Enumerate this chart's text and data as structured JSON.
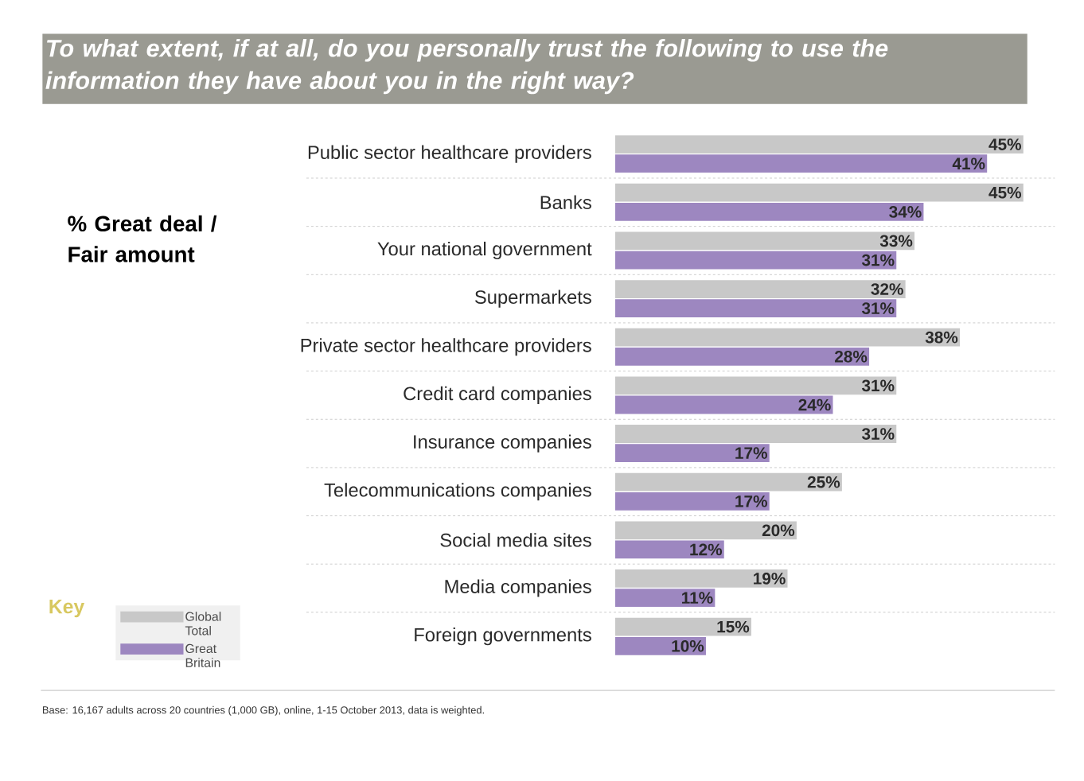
{
  "chart_data": {
    "type": "bar",
    "orientation": "horizontal",
    "title": "To what extent, if at all, do you personally trust the following to use the information they have about you in the right way?",
    "subtitle": "% Great deal / Fair amount",
    "legend_title": "Key",
    "categories": [
      "Public sector healthcare providers",
      "Banks",
      "Your national government",
      "Supermarkets",
      "Private sector healthcare providers",
      "Credit card companies",
      "Insurance companies",
      "Telecommunications companies",
      "Social media sites",
      "Media companies",
      "Foreign governments"
    ],
    "series": [
      {
        "name": "Global Total",
        "color": "#c8c8c8",
        "values": [
          45,
          45,
          33,
          32,
          38,
          31,
          31,
          25,
          20,
          19,
          15
        ],
        "value_labels": [
          "45%",
          "45%",
          "33%",
          "32%",
          "38%",
          "31%",
          "31%",
          "25%",
          "20%",
          "19%",
          "15%"
        ]
      },
      {
        "name": "Great Britain",
        "color": "#9d87c0",
        "values": [
          41,
          34,
          31,
          31,
          28,
          24,
          17,
          17,
          12,
          11,
          10
        ],
        "value_labels": [
          "41%",
          "34%",
          "31%",
          "31%",
          "28%",
          "24%",
          "17%",
          "17%",
          "12%",
          "11%",
          "10%"
        ]
      }
    ],
    "grid": "y",
    "legend": "bottom left",
    "annotations": [
      "Base: 16,167 adults across 20 countries (1,000 GB), online, 1-15 October 2013, data is weighted."
    ]
  }
}
